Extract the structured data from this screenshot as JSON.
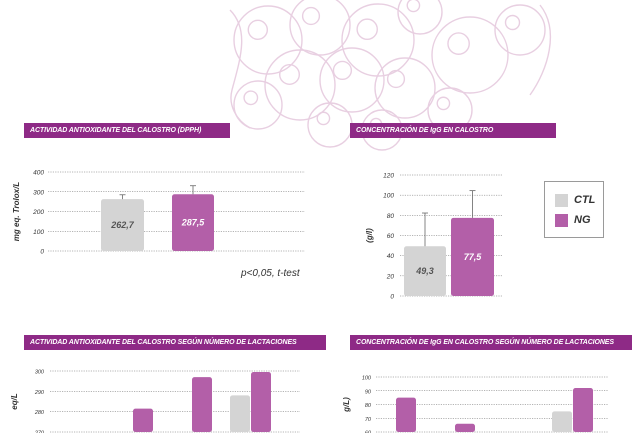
{
  "colors": {
    "ctl": "#d4d4d4",
    "ng": "#b35fa8",
    "header": "#8e2a86",
    "decoration": "#e8cfe1"
  },
  "legend": {
    "ctl_label": "CTL",
    "ng_label": "NG"
  },
  "note": "p<0,05, t-test",
  "chart_data": [
    {
      "type": "bar",
      "title": "ACTIVIDAD ANTIOXIDANTE DEL CALOSTRO (DPPH)",
      "ylabel": "mg eq. Trolox/L",
      "ylim": [
        0,
        400
      ],
      "yticks": [
        0,
        100,
        200,
        300,
        400
      ],
      "categories": [
        ""
      ],
      "series": [
        {
          "name": "CTL",
          "values": [
            262.7
          ],
          "errors": [
            22
          ],
          "labels": [
            "262,7"
          ]
        },
        {
          "name": "NG",
          "values": [
            287.5
          ],
          "errors": [
            43
          ],
          "labels": [
            "287,5"
          ]
        }
      ],
      "grid": true
    },
    {
      "type": "bar",
      "title": "CONCENTRACIÓN DE IgG EN CALOSTRO",
      "ylabel": "(g/l)",
      "ylim": [
        0,
        120
      ],
      "yticks": [
        0,
        20,
        40,
        60,
        80,
        100,
        120
      ],
      "categories": [
        ""
      ],
      "series": [
        {
          "name": "CTL",
          "values": [
            49.3
          ],
          "errors": [
            33
          ],
          "labels": [
            "49,3"
          ]
        },
        {
          "name": "NG",
          "values": [
            77.5
          ],
          "errors": [
            27
          ],
          "labels": [
            "77,5"
          ]
        }
      ],
      "grid": true
    },
    {
      "type": "bar",
      "title": "ACTIVIDAD ANTIOXIDANTE DEL CALOSTRO SEGÚN NÚMERO DE LACTACIONES",
      "ylabel": "eq/L",
      "ylim": [
        270,
        300
      ],
      "yticks": [
        270,
        280,
        290,
        300
      ],
      "categories": [
        "",
        "",
        "",
        ""
      ],
      "series": [
        {
          "name": "CTL",
          "values": [
            null,
            null,
            null,
            288
          ]
        },
        {
          "name": "NG",
          "values": [
            null,
            281.5,
            297,
            299.5
          ]
        }
      ],
      "grid": true
    },
    {
      "type": "bar",
      "title": "CONCENTRACIÓN DE IgG EN CALOSTRO SEGÚN NÚMERO DE LACTACIONES",
      "ylabel": "g/L)",
      "ylim": [
        60,
        100
      ],
      "yticks": [
        60,
        70,
        80,
        90,
        100
      ],
      "categories": [
        "",
        "",
        "",
        ""
      ],
      "series": [
        {
          "name": "CTL",
          "values": [
            null,
            null,
            null,
            75
          ]
        },
        {
          "name": "NG",
          "values": [
            85,
            66,
            null,
            92
          ]
        }
      ],
      "grid": true
    }
  ]
}
